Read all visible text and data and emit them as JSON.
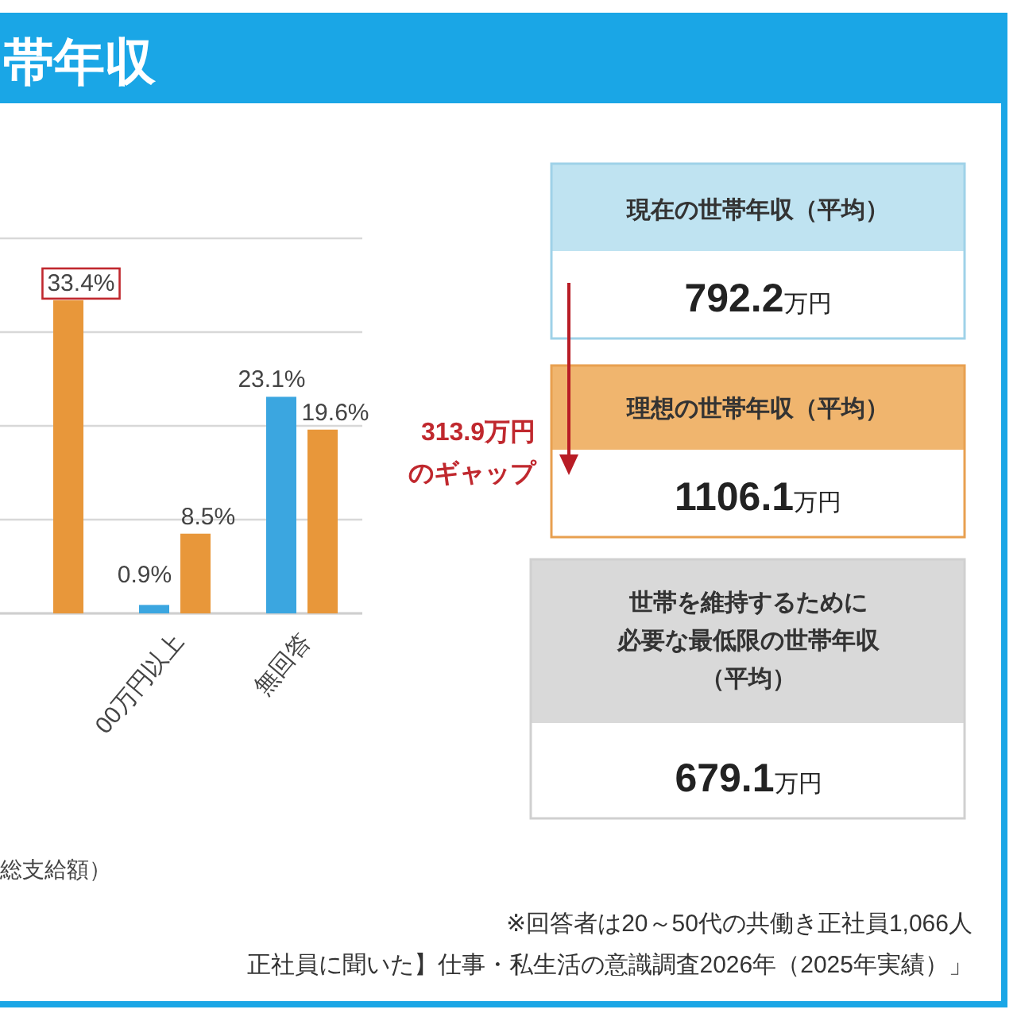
{
  "chart_data": [
    {
      "type": "bar",
      "title": "帯年収",
      "xlabel": "総支給額）",
      "categories": [
        null,
        "00万円以上",
        "無回答"
      ],
      "series": [
        {
          "color": "#3ba6e0",
          "values": [
            null,
            0.9,
            23.1
          ],
          "value_labels": [
            null,
            "0.9%",
            "23.1%"
          ]
        },
        {
          "color": "#e8973a",
          "values": [
            33.4,
            8.5,
            19.6
          ],
          "value_labels": [
            "33.4%",
            "8.5%",
            "19.6%"
          ]
        }
      ],
      "ylim": [
        0,
        40
      ],
      "yticks": [
        {
          "value": 0,
          "label": null
        },
        {
          "value": 10,
          "label": null
        },
        {
          "value": 20,
          "label": null
        },
        {
          "value": 30,
          "label": null
        },
        {
          "value": 40,
          "label": null
        }
      ],
      "grid": "y",
      "tick_labels": "x",
      "annotations": [
        "※回答者は20～50代の共働き正社員1,066人",
        "正社員に聞いた】仕事・私生活の意識調査2026年（2025年実績）」"
      ]
    },
    {
      "type": "other",
      "annotations": [
        "現在の世帯年収（平均）",
        "792.2万円",
        "理想の世帯年収（平均）",
        "1106.1万円",
        "世帯を維持するために",
        "必要な最低限の世帯年収",
        "（平均）",
        "679.1万円",
        "313.9万円",
        "のギャップ"
      ]
    }
  ]
}
